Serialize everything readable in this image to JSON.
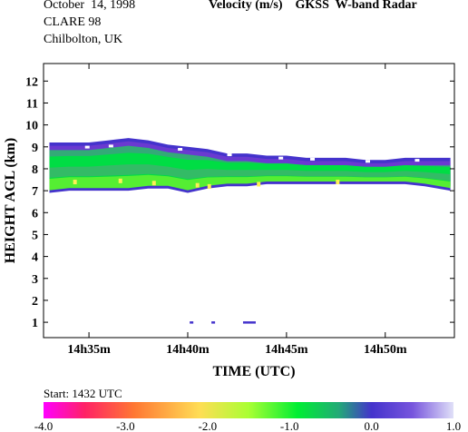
{
  "header": {
    "date": "October  14, 1998",
    "campaign": "CLARE 98",
    "location": "Chilbolton, UK",
    "quantity": "Velocity (m/s)",
    "instrument": "GKSS  W-band Radar"
  },
  "footer": {
    "start": "Start: 1432 UTC"
  },
  "chart_data": {
    "type": "heatmap",
    "title": "Velocity (m/s)",
    "xlabel": "TIME (UTC)",
    "ylabel": "HEIGHT AGL (km)",
    "x_ticks": [
      "14h35m",
      "14h40m",
      "14h45m",
      "14h50m"
    ],
    "x_tick_minutes": [
      35,
      40,
      45,
      50
    ],
    "xlim_minutes": [
      32.7,
      53.5
    ],
    "y_ticks": [
      1,
      2,
      3,
      4,
      5,
      6,
      7,
      8,
      9,
      10,
      11,
      12
    ],
    "ylim": [
      0.3,
      12.8
    ],
    "colorbar": {
      "min": -4.0,
      "max": 1.0,
      "tick_labels": [
        "-4.0",
        "-3.0",
        "-2.0",
        "-1.0",
        "0.0",
        "1.0"
      ],
      "tick_values": [
        -4,
        -3,
        -2,
        -1,
        0,
        1
      ],
      "colors": [
        "#ff00ff",
        "#ff3366",
        "#ff9933",
        "#ffee66",
        "#99ff33",
        "#00ee44",
        "#33aa88",
        "#4433cc",
        "#6633cc",
        "#c8c8f0"
      ]
    },
    "cloud_layer": {
      "time_minutes": [
        33.0,
        34.0,
        35.0,
        36.0,
        37.0,
        38.0,
        39.0,
        40.0,
        41.0,
        42.0,
        43.0,
        44.0,
        45.0,
        46.0,
        47.0,
        48.0,
        49.0,
        50.0,
        51.0,
        52.0,
        53.3
      ],
      "top_km": [
        9.2,
        9.2,
        9.2,
        9.3,
        9.4,
        9.3,
        9.1,
        9.0,
        8.9,
        8.7,
        8.7,
        8.6,
        8.6,
        8.5,
        8.5,
        8.5,
        8.4,
        8.4,
        8.5,
        8.5,
        8.5
      ],
      "base_km": [
        6.9,
        7.0,
        7.0,
        7.0,
        7.0,
        7.1,
        7.1,
        6.9,
        7.1,
        7.2,
        7.2,
        7.3,
        7.3,
        7.3,
        7.3,
        7.3,
        7.3,
        7.3,
        7.3,
        7.2,
        7.0
      ]
    },
    "low_echoes": {
      "time_minutes": [
        40.1,
        41.2,
        42.8
      ],
      "height_km": [
        1.0,
        1.0,
        1.0
      ]
    }
  }
}
